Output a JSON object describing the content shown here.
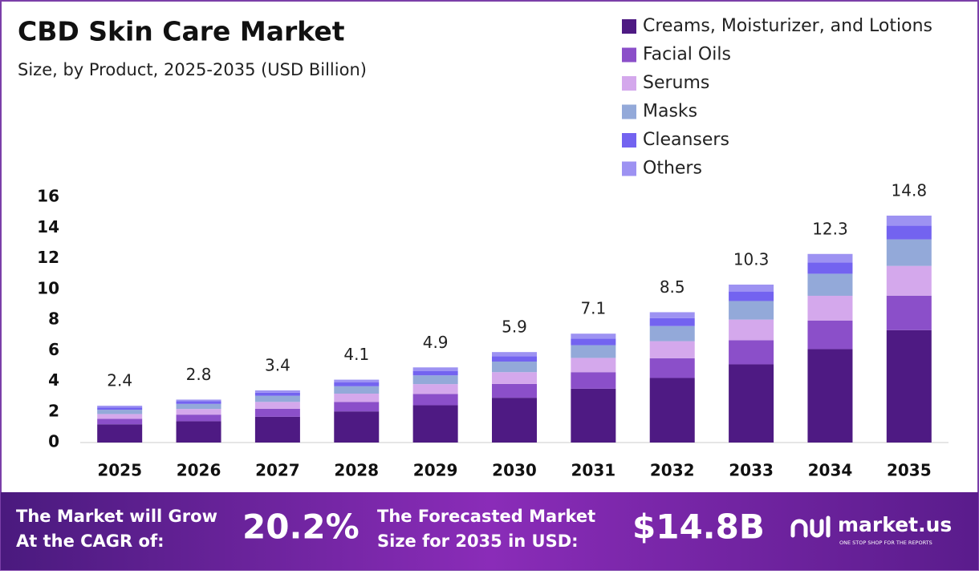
{
  "chart_data": {
    "type": "stacked_bar",
    "title": "CBD Skin Care Market",
    "subtitle": "Size, by Product, 2025-2035 (USD Billion)",
    "categories": [
      "2025",
      "2026",
      "2027",
      "2028",
      "2029",
      "2030",
      "2031",
      "2032",
      "2033",
      "2034",
      "2035"
    ],
    "series": [
      {
        "name": "Creams, Moisturizer, and Lotions",
        "color": "#4e1a83",
        "values": [
          1.19,
          1.39,
          1.68,
          2.03,
          2.43,
          2.92,
          3.51,
          4.21,
          5.1,
          6.09,
          7.33
        ]
      },
      {
        "name": "Facial Oils",
        "color": "#8b4fc9",
        "values": [
          0.36,
          0.43,
          0.52,
          0.62,
          0.74,
          0.9,
          1.08,
          1.29,
          1.57,
          1.87,
          2.25
        ]
      },
      {
        "name": "Serums",
        "color": "#d4a8ec",
        "values": [
          0.31,
          0.37,
          0.45,
          0.54,
          0.64,
          0.77,
          0.93,
          1.11,
          1.35,
          1.61,
          1.94
        ]
      },
      {
        "name": "Masks",
        "color": "#93a9d9",
        "values": [
          0.28,
          0.33,
          0.4,
          0.48,
          0.57,
          0.69,
          0.83,
          0.99,
          1.21,
          1.44,
          1.73
        ]
      },
      {
        "name": "Cleansers",
        "color": "#7363f0",
        "values": [
          0.15,
          0.17,
          0.2,
          0.25,
          0.29,
          0.35,
          0.43,
          0.51,
          0.62,
          0.74,
          0.89
        ]
      },
      {
        "name": "Others",
        "color": "#9d92f2",
        "values": [
          0.11,
          0.11,
          0.15,
          0.18,
          0.23,
          0.27,
          0.32,
          0.39,
          0.45,
          0.55,
          0.66
        ]
      }
    ],
    "totals": [
      2.4,
      2.8,
      3.4,
      4.1,
      4.9,
      5.9,
      7.1,
      8.5,
      10.3,
      12.3,
      14.8
    ],
    "ylim": [
      0,
      16
    ],
    "yticks": [
      0,
      2,
      4,
      6,
      8,
      10,
      12,
      14,
      16
    ],
    "grid": false
  },
  "footer": {
    "cagr_text": [
      "The Market will Grow",
      "At the CAGR of:"
    ],
    "cagr_value": "20.2%",
    "forecast_text": [
      "The Forecasted Market",
      "Size for 2035 in USD:"
    ],
    "forecast_value": "$14.8B",
    "brand": "market.us",
    "tagline": "ONE STOP SHOP FOR THE REPORTS"
  }
}
